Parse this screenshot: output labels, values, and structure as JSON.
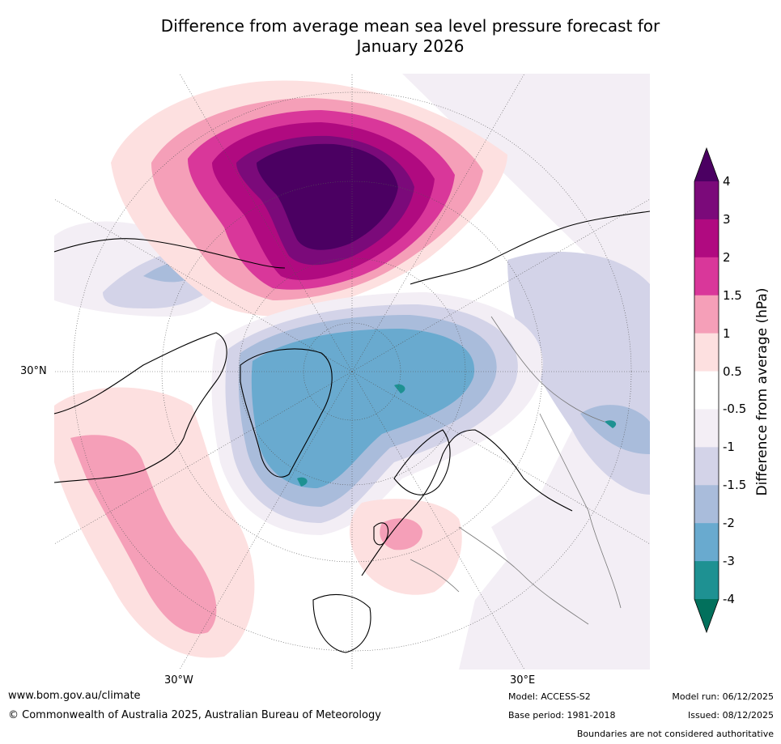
{
  "title_line1": "Difference from average mean sea level pressure forecast for",
  "title_line2": "January 2026",
  "map": {
    "projection": "north-polar-stereographic",
    "lat_labels": [
      "30°N"
    ],
    "lon_labels": [
      "30°W",
      "30°E"
    ],
    "anomaly_regions": [
      {
        "name": "north-pacific-siberia-high",
        "peak_hPa": 4,
        "sign": "positive"
      },
      {
        "name": "arctic-greenland-low",
        "peak_hPa": -3,
        "sign": "negative"
      },
      {
        "name": "north-atlantic-high",
        "peak_hPa": 1.5,
        "sign": "positive"
      },
      {
        "name": "central-europe-high",
        "peak_hPa": 1.5,
        "sign": "positive"
      },
      {
        "name": "east-asia-low",
        "peak_hPa": -3,
        "sign": "negative"
      }
    ]
  },
  "colorbar": {
    "label": "Difference from average (hPa)",
    "ticks": [
      "4",
      "3",
      "2",
      "1.5",
      "1",
      "0.5",
      "-0.5",
      "-1",
      "-1.5",
      "-2",
      "-3",
      "-4"
    ],
    "colors": [
      "#4b0062",
      "#7b0a7a",
      "#b00a80",
      "#d9379a",
      "#f59fb8",
      "#fde0e0",
      "#ffffff",
      "#f3eef5",
      "#d3d3e8",
      "#a9bcdb",
      "#69aacf",
      "#1e9192",
      "#02705c"
    ],
    "extend": "both"
  },
  "footer": {
    "website": "www.bom.gov.au/climate",
    "copyright": "© Commonwealth of Australia 2025, Australian Bureau of Meteorology",
    "model": "Model: ACCESS-S2",
    "base_period": "Base period: 1981-2018",
    "model_run": "Model run: 06/12/2025",
    "issued": "Issued: 08/12/2025",
    "disclaimer": "Boundaries are not considered authoritative"
  }
}
